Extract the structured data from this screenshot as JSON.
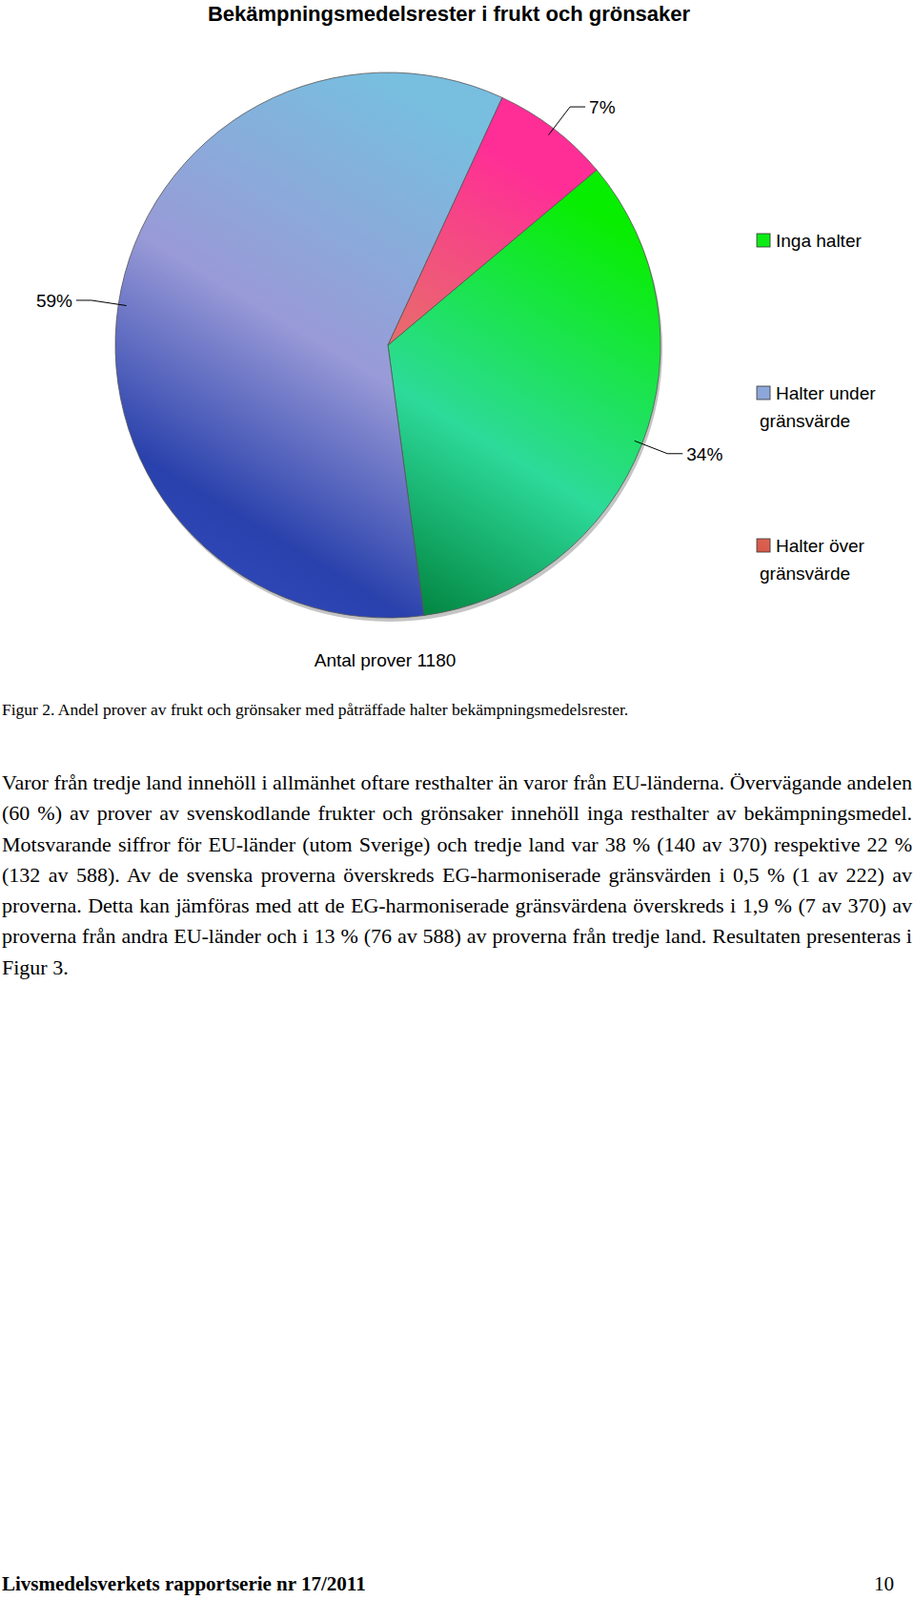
{
  "chart_data": {
    "type": "pie",
    "title": "Bekämpningsmedelsrester i frukt och grönsaker",
    "categories": [
      "Inga halter",
      "Halter under gränsvärde",
      "Halter över gränsvärde"
    ],
    "values": [
      34,
      59,
      7
    ],
    "value_labels": [
      "34%",
      "59%",
      "7%"
    ],
    "colors": [
      "#00a14b",
      "#3a55d0",
      "#e00000"
    ],
    "data_labels": true,
    "legend": "right",
    "annotation": "Antal prover 1180"
  },
  "caption": "Figur 2. Andel prover av frukt och grönsaker med påträffade halter bekämpningsmedelsrester.",
  "paragraph": "Varor från tredje land innehöll i allmänhet oftare resthalter än varor från EU-länderna. Övervägande andelen (60 %) av prover av svenskodlande frukter och grönsaker innehöll inga resthalter av bekämpningsmedel. Motsvarande siffror för EU-länder (utom Sverige) och tredje land var 38 % (140 av 370) respektive 22 % (132 av 588). Av de svenska proverna överskreds EG-harmoniserade gränsvärden i 0,5 % (1 av 222) av proverna. Detta kan jämföras med att de EG-harmoniserade gränsvärdena överskreds i 1,9 % (7 av 370) av proverna från andra EU-länder och i 13 % (76 av 588) av proverna från tredje land. Resultaten presenteras i Figur 3.",
  "footer": {
    "left": "Livsmedelsverkets rapportserie nr 17/2011",
    "page": 10
  }
}
